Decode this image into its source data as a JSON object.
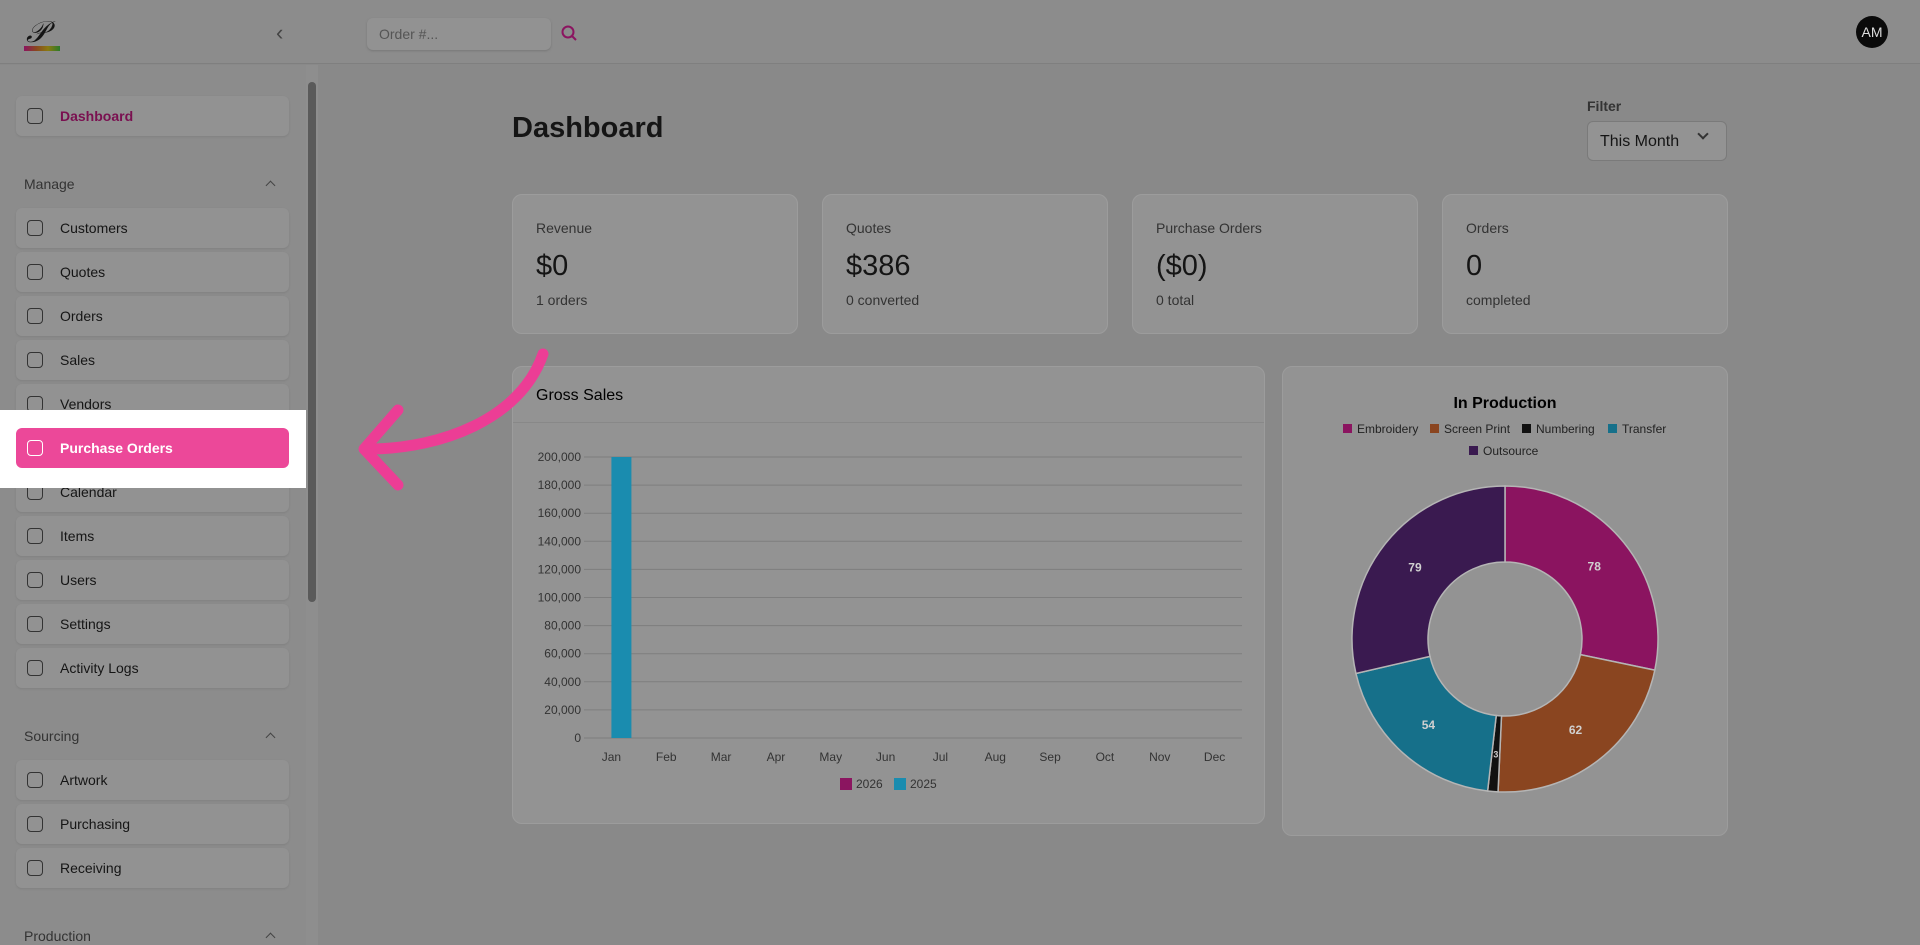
{
  "header": {
    "search_placeholder": "Order #...",
    "avatar": "AM"
  },
  "sidebar": {
    "top": "Dashboard",
    "sections": [
      {
        "title": "Manage",
        "items": [
          "Customers",
          "Quotes",
          "Orders",
          "Sales",
          "Vendors",
          "Purchase Orders",
          "Calendar",
          "Items",
          "Users",
          "Settings",
          "Activity Logs"
        ]
      },
      {
        "title": "Sourcing",
        "items": [
          "Artwork",
          "Purchasing",
          "Receiving"
        ]
      },
      {
        "title": "Production"
      }
    ]
  },
  "page": {
    "title": "Dashboard",
    "filter_label": "Filter",
    "filter_value": "This Month"
  },
  "cards": [
    {
      "label": "Revenue",
      "value": "$0",
      "sub": "1 orders"
    },
    {
      "label": "Quotes",
      "value": "$386",
      "sub": "0 converted"
    },
    {
      "label": "Purchase Orders",
      "value": "($0)",
      "sub": "0 total"
    },
    {
      "label": "Orders",
      "value": "0",
      "sub": "completed"
    }
  ],
  "chart_data": [
    {
      "type": "bar",
      "title": "Gross Sales",
      "categories": [
        "Jan",
        "Feb",
        "Mar",
        "Apr",
        "May",
        "Jun",
        "Jul",
        "Aug",
        "Sep",
        "Oct",
        "Nov",
        "Dec"
      ],
      "series": [
        {
          "name": "2026",
          "color": "#8b1560",
          "values": [
            0,
            0,
            0,
            0,
            0,
            0,
            0,
            0,
            0,
            0,
            0,
            0
          ]
        },
        {
          "name": "2025",
          "color": "#1a8caf",
          "values": [
            200000,
            0,
            0,
            0,
            0,
            0,
            0,
            0,
            0,
            0,
            0,
            0
          ]
        }
      ],
      "ylim": [
        0,
        200000
      ],
      "yticks": [
        0,
        {
          "value": 20000,
          "label": "20,000"
        },
        {
          "value": 40000,
          "label": "40,000"
        },
        {
          "value": 60000,
          "label": "60,000"
        },
        {
          "value": 80000,
          "label": "80,000"
        },
        {
          "value": 100000,
          "label": "100,000"
        },
        {
          "value": 120000,
          "label": "120,000"
        },
        {
          "value": 140000,
          "label": "140,000"
        },
        {
          "value": 160000,
          "label": "160,000"
        },
        {
          "value": 180000,
          "label": "180,000"
        },
        {
          "value": 200000,
          "label": "200,000"
        }
      ],
      "grid": true,
      "legend": "bottom"
    },
    {
      "type": "pie",
      "title": "In Production",
      "categories": [
        "Embroidery",
        "Screen Print",
        "Numbering",
        "Transfer",
        "Outsource"
      ],
      "values": [
        78,
        62,
        3,
        54,
        79
      ],
      "colors": [
        "#8b1460",
        "#8a4520",
        "#111111",
        "#16708a",
        "#3a1a50"
      ],
      "donut": true,
      "legend": "top"
    }
  ]
}
